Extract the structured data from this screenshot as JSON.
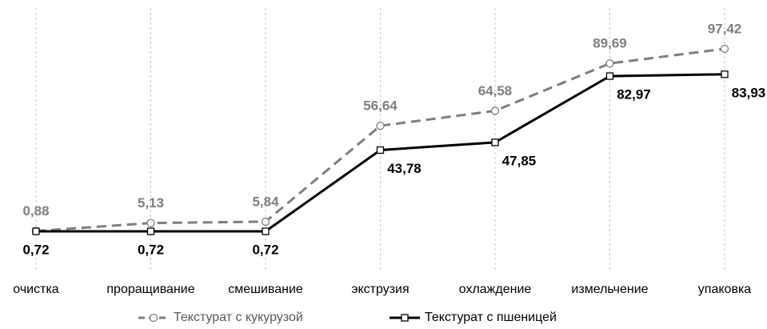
{
  "chart_data": {
    "type": "line",
    "categories": [
      "очистка",
      "проращивание",
      "смешивание",
      "экструзия",
      "охлаждение",
      "измельчение",
      "упаковка"
    ],
    "series": [
      {
        "name": "Текстурат с кукурузой",
        "color": "#7f7f7f",
        "marker": "circle",
        "dash": true,
        "values": [
          0.88,
          5.13,
          5.84,
          56.64,
          64.58,
          89.69,
          97.42
        ],
        "value_labels": [
          "0,88",
          "5,13",
          "5,84",
          "56,64",
          "64,58",
          "89,69",
          "97,42"
        ]
      },
      {
        "name": "Текстурат с пшеницей",
        "color": "#000000",
        "marker": "square",
        "dash": false,
        "values": [
          0.72,
          0.72,
          0.72,
          43.78,
          47.85,
          82.97,
          83.93
        ],
        "value_labels": [
          "0,72",
          "0,72",
          "0,72",
          "43,78",
          "47,85",
          "82,97",
          "83,93"
        ]
      }
    ],
    "grid": true,
    "legend": "bottom"
  }
}
